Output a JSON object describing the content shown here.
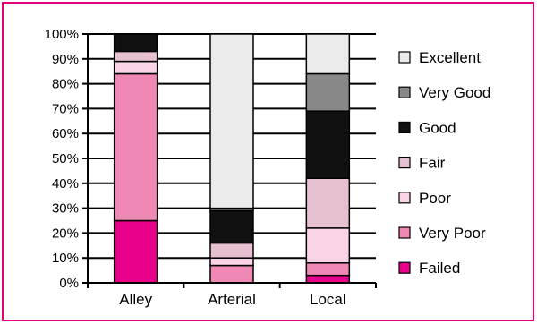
{
  "chart_data": {
    "type": "bar",
    "stacked": true,
    "categories": [
      "Alley",
      "Arterial",
      "Local"
    ],
    "y_ticks": [
      "0%",
      "10%",
      "20%",
      "30%",
      "40%",
      "50%",
      "60%",
      "70%",
      "80%",
      "90%",
      "100%"
    ],
    "ylim": [
      0,
      100
    ],
    "grid": true,
    "legend_position": "right",
    "series": [
      {
        "name": "Failed",
        "color": "#e8008a",
        "values": [
          25,
          0,
          3
        ]
      },
      {
        "name": "Very Poor",
        "color": "#f088b5",
        "values": [
          59,
          7,
          5
        ]
      },
      {
        "name": "Poor",
        "color": "#fbd3e6",
        "values": [
          5,
          3,
          14
        ]
      },
      {
        "name": "Fair",
        "color": "#e6c0d0",
        "values": [
          4,
          6,
          20
        ]
      },
      {
        "name": "Good",
        "color": "#111111",
        "values": [
          7,
          13,
          27
        ]
      },
      {
        "name": "Very Good",
        "color": "#888888",
        "values": [
          0,
          1,
          15
        ]
      },
      {
        "name": "Excellent",
        "color": "#ebebeb",
        "values": [
          0,
          70,
          16
        ]
      }
    ]
  }
}
